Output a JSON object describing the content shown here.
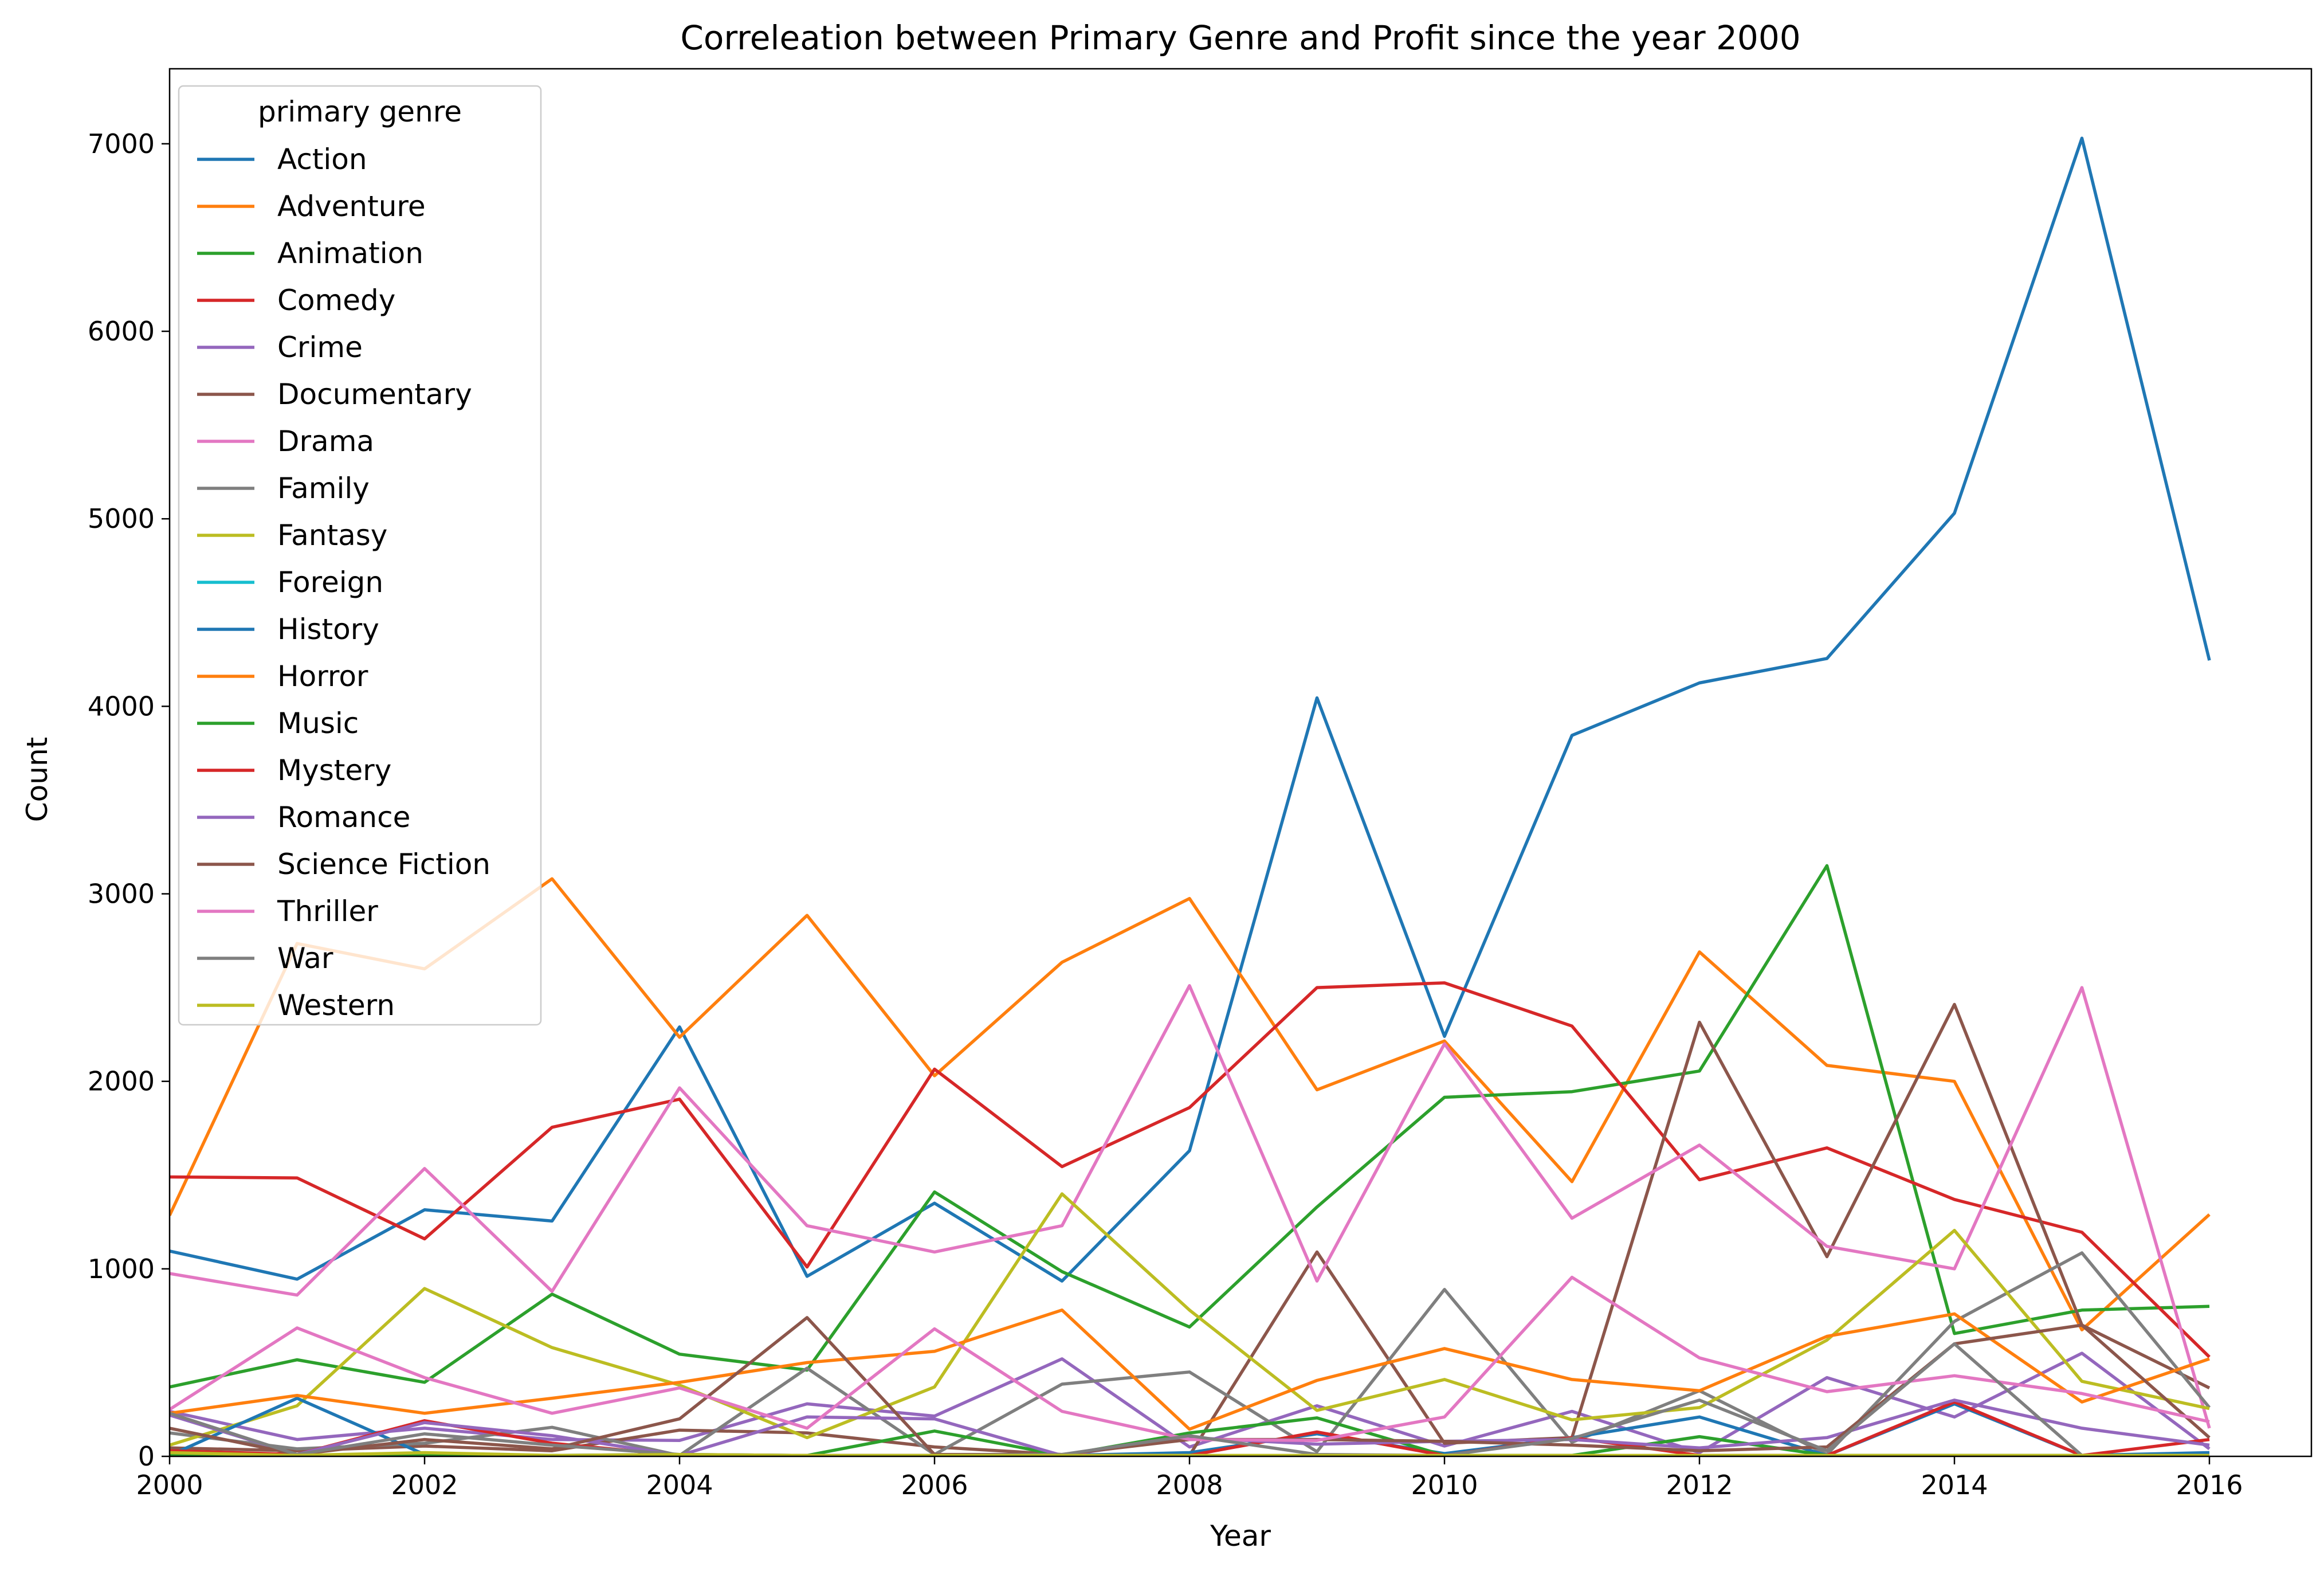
{
  "chart_data": {
    "type": "line",
    "title": "Correleation between Primary Genre and Profit since the year 2000",
    "xlabel": "Year",
    "ylabel": "Count",
    "xlim": [
      2000,
      2016.8
    ],
    "ylim": [
      0,
      7400
    ],
    "xticks": [
      2000,
      2002,
      2004,
      2006,
      2008,
      2010,
      2012,
      2014,
      2016
    ],
    "yticks": [
      0,
      1000,
      2000,
      3000,
      4000,
      5000,
      6000,
      7000
    ],
    "grid": false,
    "legend": {
      "title": "primary genre",
      "placement": "top-left"
    },
    "x": [
      2000,
      2001,
      2002,
      2003,
      2004,
      2005,
      2006,
      2007,
      2008,
      2009,
      2010,
      2011,
      2012,
      2013,
      2014,
      2015,
      2016
    ],
    "series": [
      {
        "name": "Action",
        "color": "#1f77b4",
        "values": [
          1095,
          945,
          1315,
          1255,
          2290,
          960,
          1350,
          935,
          1630,
          4045,
          2240,
          3845,
          4125,
          4255,
          5030,
          7030,
          4245
        ]
      },
      {
        "name": "Adventure",
        "color": "#ff7f0e",
        "values": [
          1285,
          2735,
          2600,
          3080,
          2235,
          2885,
          2030,
          2635,
          2975,
          1955,
          2215,
          1465,
          2690,
          2085,
          2000,
          675,
          1290
        ]
      },
      {
        "name": "Animation",
        "color": "#2ca02c",
        "values": [
          370,
          515,
          395,
          865,
          545,
          460,
          1410,
          985,
          690,
          1330,
          1915,
          1945,
          2055,
          3150,
          655,
          780,
          800
        ]
      },
      {
        "name": "Comedy",
        "color": "#d62728",
        "values": [
          1490,
          1485,
          1160,
          1755,
          1905,
          1010,
          2065,
          1545,
          1860,
          2500,
          2525,
          2295,
          1475,
          1645,
          1370,
          1195,
          530
        ]
      },
      {
        "name": "Crime",
        "color": "#9467bd",
        "values": [
          240,
          90,
          150,
          90,
          85,
          280,
          215,
          520,
          50,
          270,
          55,
          240,
          20,
          420,
          210,
          550,
          40
        ]
      },
      {
        "name": "Documentary",
        "color": "#8c564b",
        "values": [
          45,
          30,
          55,
          30,
          140,
          125,
          50,
          10,
          5,
          1090,
          70,
          100,
          2315,
          1065,
          2410,
          700,
          365
        ]
      },
      {
        "name": "Drama",
        "color": "#e377c2",
        "values": [
          975,
          860,
          1535,
          880,
          1965,
          1230,
          1090,
          1230,
          2510,
          935,
          2200,
          1270,
          1660,
          1120,
          1000,
          2500,
          150
        ]
      },
      {
        "name": "Family",
        "color": "#7f7f7f",
        "values": [
          125,
          40,
          70,
          155,
          5,
          470,
          10,
          385,
          450,
          25,
          890,
          75,
          350,
          10,
          720,
          1085,
          260
        ]
      },
      {
        "name": "Fantasy",
        "color": "#bcbd22",
        "values": [
          60,
          270,
          895,
          580,
          380,
          100,
          370,
          1400,
          780,
          245,
          410,
          195,
          260,
          620,
          1205,
          400,
          255
        ]
      },
      {
        "name": "Foreign",
        "color": "#17becf",
        "values": [
          0,
          0,
          0,
          0,
          0,
          0,
          0,
          0,
          0,
          0,
          0,
          0,
          0,
          0,
          0,
          0,
          0
        ]
      },
      {
        "name": "History",
        "color": "#1f77b4",
        "values": [
          5,
          310,
          10,
          5,
          10,
          5,
          5,
          5,
          20,
          120,
          15,
          100,
          210,
          5,
          280,
          5,
          20
        ]
      },
      {
        "name": "Horror",
        "color": "#ff7f0e",
        "values": [
          230,
          325,
          230,
          310,
          395,
          500,
          560,
          780,
          145,
          405,
          575,
          410,
          350,
          640,
          760,
          290,
          520
        ]
      },
      {
        "name": "Music",
        "color": "#2ca02c",
        "values": [
          5,
          5,
          5,
          5,
          5,
          5,
          135,
          5,
          125,
          205,
          5,
          5,
          105,
          5,
          5,
          5,
          5
        ]
      },
      {
        "name": "Mystery",
        "color": "#d62728",
        "values": [
          30,
          10,
          190,
          70,
          5,
          5,
          5,
          5,
          5,
          130,
          5,
          100,
          5,
          5,
          290,
          5,
          90
        ]
      },
      {
        "name": "Romance",
        "color": "#9467bd",
        "values": [
          220,
          10,
          180,
          110,
          5,
          210,
          200,
          5,
          100,
          65,
          80,
          90,
          45,
          100,
          300,
          150,
          60
        ]
      },
      {
        "name": "Science Fiction",
        "color": "#8c564b",
        "values": [
          150,
          10,
          90,
          40,
          200,
          740,
          10,
          10,
          90,
          90,
          80,
          60,
          30,
          50,
          600,
          700,
          100
        ]
      },
      {
        "name": "Thriller",
        "color": "#e377c2",
        "values": [
          250,
          685,
          420,
          230,
          365,
          150,
          680,
          240,
          90,
          85,
          210,
          955,
          525,
          345,
          430,
          335,
          185
        ]
      },
      {
        "name": "War",
        "color": "#7f7f7f",
        "values": [
          230,
          10,
          120,
          60,
          10,
          5,
          5,
          10,
          110,
          10,
          5,
          95,
          300,
          30,
          600,
          5,
          5
        ]
      },
      {
        "name": "Western",
        "color": "#bcbd22",
        "values": [
          20,
          5,
          20,
          5,
          10,
          5,
          5,
          5,
          5,
          5,
          5,
          5,
          5,
          5,
          5,
          5,
          5
        ]
      }
    ]
  }
}
